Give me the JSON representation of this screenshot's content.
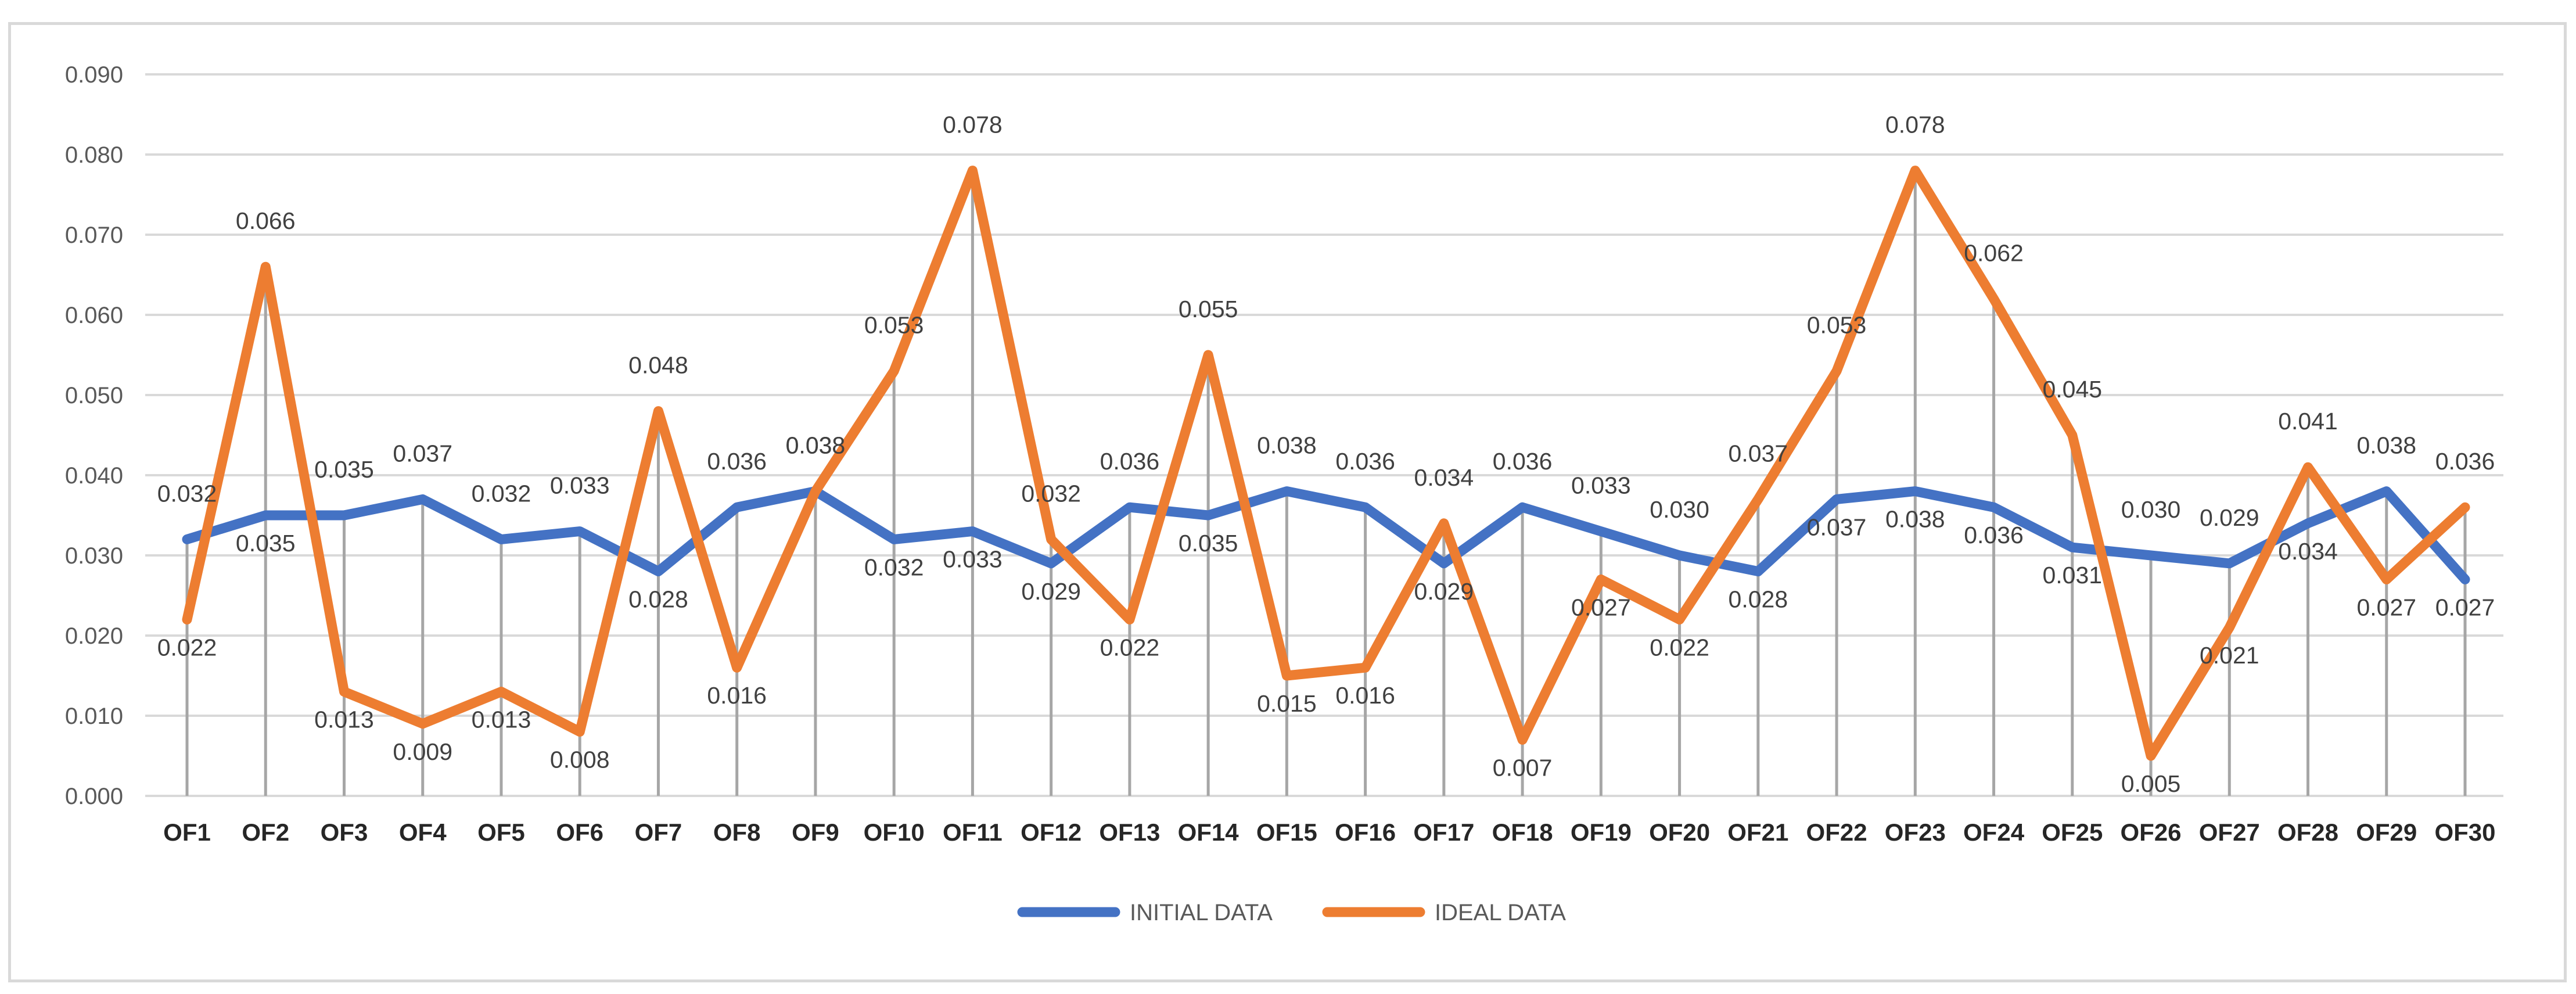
{
  "chart_data": {
    "type": "line",
    "title": "",
    "xlabel": "",
    "ylabel": "",
    "ylim": [
      0,
      0.09
    ],
    "yticks": [
      "0.000",
      "0.010",
      "0.020",
      "0.030",
      "0.040",
      "0.050",
      "0.060",
      "0.070",
      "0.080",
      "0.090"
    ],
    "categories": [
      "OF1",
      "OF2",
      "OF3",
      "OF4",
      "OF5",
      "OF6",
      "OF7",
      "OF8",
      "OF9",
      "OF10",
      "OF11",
      "OF12",
      "OF13",
      "OF14",
      "OF15",
      "OF16",
      "OF17",
      "OF18",
      "OF19",
      "OF20",
      "OF21",
      "OF22",
      "OF23",
      "OF24",
      "OF25",
      "OF26",
      "OF27",
      "OF28",
      "OF29",
      "OF30"
    ],
    "grid": true,
    "drop_lines": true,
    "legend_position": "bottom",
    "series": [
      {
        "name": "INITIAL DATA",
        "color": "#4472c4",
        "values": [
          0.032,
          0.035,
          0.035,
          0.037,
          0.032,
          0.033,
          0.028,
          0.036,
          0.038,
          0.032,
          0.033,
          0.029,
          0.036,
          0.035,
          0.038,
          0.036,
          0.029,
          0.036,
          0.033,
          0.03,
          0.028,
          0.037,
          0.038,
          0.036,
          0.031,
          0.03,
          0.029,
          0.034,
          0.038,
          0.027
        ],
        "labels": [
          "0.032",
          "0.035",
          "0.035",
          "0.037",
          "0.032",
          "0.033",
          "0.028",
          "0.036",
          "0.038",
          "0.032",
          "0.033",
          "0.029",
          "0.036",
          "0.035",
          "0.038",
          "0.036",
          "0.029",
          "0.036",
          "0.033",
          "0.030",
          "0.028",
          "0.037",
          "0.038",
          "0.036",
          "0.031",
          "0.030",
          "0.029",
          "0.034",
          "0.038",
          "0.027"
        ]
      },
      {
        "name": "IDEAL DATA",
        "color": "#ed7d31",
        "values": [
          0.022,
          0.066,
          0.013,
          0.009,
          0.013,
          0.008,
          0.048,
          0.016,
          0.038,
          0.053,
          0.078,
          0.032,
          0.022,
          0.055,
          0.015,
          0.016,
          0.034,
          0.007,
          0.027,
          0.022,
          0.037,
          0.053,
          0.078,
          0.062,
          0.045,
          0.005,
          0.021,
          0.041,
          0.027,
          0.036
        ],
        "labels": [
          "0.022",
          "0.066",
          "0.013",
          "0.009",
          "0.013",
          "0.008",
          "0.048",
          "0.016",
          "0.038",
          "0.053",
          "0.078",
          "0.032",
          "0.022",
          "0.055",
          "0.015",
          "0.016",
          "0.034",
          "0.007",
          "0.027",
          "0.022",
          "0.037",
          "0.053",
          "0.078",
          "0.062",
          "0.045",
          "0.005",
          "0.021",
          "0.041",
          "0.027",
          "0.036"
        ]
      }
    ]
  }
}
